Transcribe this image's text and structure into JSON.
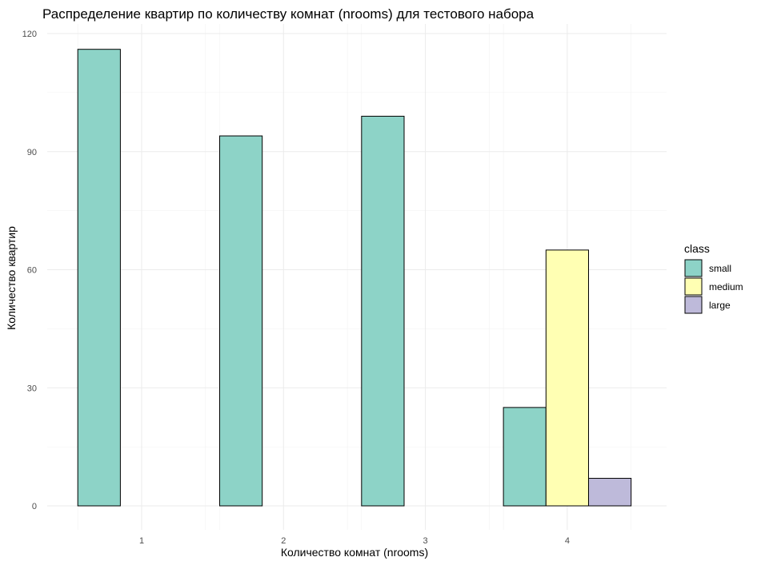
{
  "chart_data": {
    "type": "bar",
    "title": "Распределение квартир по количеству комнат (nrooms) для тестового набора",
    "xlabel": "Количество комнат (nrooms)",
    "ylabel": "Количество квартир",
    "categories": [
      "1",
      "2",
      "3",
      "4"
    ],
    "series": [
      {
        "name": "small",
        "values": [
          116,
          94,
          99,
          25
        ],
        "color": "#8dd3c7"
      },
      {
        "name": "medium",
        "values": [
          0,
          0,
          0,
          65
        ],
        "color": "#ffffb3"
      },
      {
        "name": "large",
        "values": [
          0,
          0,
          0,
          7
        ],
        "color": "#bebada"
      }
    ],
    "ylim": [
      0,
      120
    ],
    "yticks": [
      0,
      30,
      60,
      90,
      120
    ],
    "grid": true,
    "legend_title": "class",
    "legend_position": "right"
  }
}
